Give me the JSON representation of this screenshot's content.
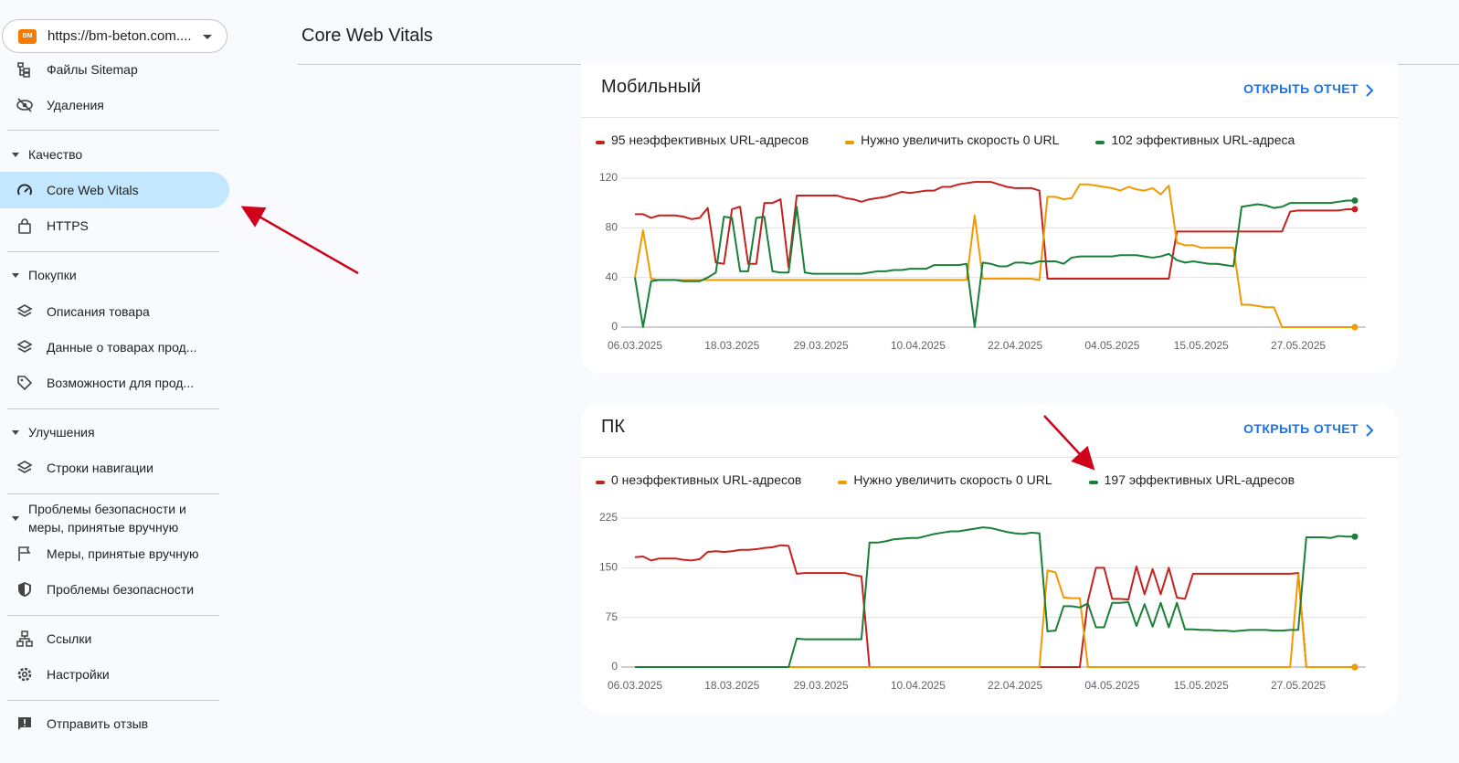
{
  "property": "https://bm-beton.com....",
  "property_icon": "BM",
  "header": {
    "title": "Core Web Vitals"
  },
  "nav": {
    "top_items": [
      "Файлы Sitemap",
      "Удаления"
    ],
    "sections": [
      {
        "title": "Качество",
        "items": [
          "Core Web Vitals",
          "HTTPS"
        ]
      },
      {
        "title": "Покупки",
        "items": [
          "Описания товара",
          "Данные о товарах прод...",
          "Возможности для прод..."
        ]
      },
      {
        "title": "Улучшения",
        "items": [
          "Строки навигации"
        ]
      },
      {
        "title": "Проблемы безопасности и меры, принятые вручную",
        "items": [
          "Меры, принятые вручную",
          "Проблемы безопасности"
        ]
      }
    ],
    "bottom_items": [
      "Ссылки",
      "Настройки"
    ],
    "feedback": "Отправить отзыв"
  },
  "report_link": "ОТКРЫТЬ ОТЧЕТ",
  "chart_data": [
    {
      "type": "line",
      "title": "Мобильный",
      "categories": [
        "06.03.2025",
        null,
        null,
        null,
        null,
        null,
        null,
        null,
        null,
        null,
        null,
        null,
        "18.03.2025",
        null,
        null,
        null,
        null,
        null,
        null,
        null,
        null,
        null,
        null,
        "29.03.2025",
        null,
        null,
        null,
        null,
        null,
        null,
        null,
        null,
        null,
        null,
        null,
        "10.04.2025",
        null,
        null,
        null,
        null,
        null,
        null,
        null,
        null,
        null,
        null,
        null,
        "22.04.2025",
        null,
        null,
        null,
        null,
        null,
        null,
        null,
        null,
        null,
        null,
        null,
        "04.05.2025",
        null,
        null,
        null,
        null,
        null,
        null,
        null,
        null,
        null,
        null,
        "15.05.2025",
        null,
        null,
        null,
        null,
        null,
        null,
        null,
        null,
        null,
        null,
        null,
        "27.05.2025",
        null,
        null,
        null,
        null,
        null,
        null,
        null
      ],
      "ylim": [
        0,
        120
      ],
      "yticks": [
        0,
        40,
        80,
        120
      ],
      "grid": true,
      "series": [
        {
          "name": "95 неэффективных URL-адресов",
          "color": "#c5221f",
          "values": [
            91,
            91,
            88,
            90,
            90,
            90,
            89,
            87,
            88,
            96,
            52,
            51,
            95,
            97,
            51,
            51,
            100,
            100,
            103,
            48,
            106,
            106,
            106,
            106,
            106,
            106,
            104,
            103,
            101,
            103,
            104,
            105,
            107,
            109,
            108,
            109,
            110,
            110,
            113,
            113,
            115,
            116,
            117,
            117,
            117,
            115,
            113,
            112,
            112,
            112,
            110,
            39,
            39,
            39,
            39,
            39,
            39,
            39,
            39,
            39,
            39,
            39,
            39,
            39,
            39,
            39,
            39,
            77,
            77,
            77,
            77,
            77,
            77,
            77,
            77,
            77,
            77,
            77,
            77,
            77,
            77,
            93,
            94,
            94,
            94,
            94,
            94,
            94,
            95,
            95
          ]
        },
        {
          "name": "Нужно увеличить скорость 0 URL",
          "color": "#f29900",
          "values": [
            40,
            78,
            39,
            38,
            38,
            38,
            38,
            38,
            38,
            38,
            38,
            38,
            38,
            38,
            38,
            38,
            38,
            38,
            38,
            38,
            38,
            38,
            38,
            38,
            38,
            38,
            38,
            38,
            38,
            38,
            38,
            38,
            38,
            38,
            38,
            38,
            38,
            38,
            38,
            38,
            38,
            38,
            90,
            39,
            39,
            39,
            39,
            39,
            39,
            39,
            38,
            105,
            105,
            103,
            104,
            115,
            115,
            114,
            113,
            112,
            110,
            113,
            111,
            110,
            112,
            107,
            114,
            68,
            66,
            66,
            64,
            64,
            64,
            64,
            64,
            18,
            18,
            17,
            16,
            16,
            0,
            0,
            0,
            0,
            0,
            0,
            0,
            0,
            0,
            0
          ]
        },
        {
          "name": "102 эффективных URL-адреса",
          "color": "#188038",
          "values": [
            40,
            0,
            37,
            38,
            38,
            38,
            37,
            37,
            37,
            40,
            44,
            89,
            88,
            45,
            45,
            88,
            89,
            45,
            44,
            44,
            97,
            44,
            43,
            43,
            43,
            43,
            43,
            43,
            43,
            44,
            45,
            45,
            46,
            46,
            47,
            47,
            47,
            50,
            50,
            50,
            50,
            51,
            0,
            52,
            51,
            49,
            49,
            52,
            52,
            51,
            53,
            53,
            53,
            51,
            56,
            57,
            57,
            57,
            57,
            57,
            58,
            58,
            58,
            57,
            56,
            57,
            59,
            54,
            52,
            53,
            52,
            51,
            51,
            50,
            49,
            97,
            98,
            99,
            98,
            96,
            97,
            100,
            100,
            100,
            100,
            100,
            100,
            101,
            102,
            102
          ]
        }
      ]
    },
    {
      "type": "line",
      "title": "ПК",
      "categories": [
        "06.03.2025",
        null,
        null,
        null,
        null,
        null,
        null,
        null,
        null,
        null,
        null,
        null,
        "18.03.2025",
        null,
        null,
        null,
        null,
        null,
        null,
        null,
        null,
        null,
        null,
        "29.03.2025",
        null,
        null,
        null,
        null,
        null,
        null,
        null,
        null,
        null,
        null,
        null,
        "10.04.2025",
        null,
        null,
        null,
        null,
        null,
        null,
        null,
        null,
        null,
        null,
        null,
        "22.04.2025",
        null,
        null,
        null,
        null,
        null,
        null,
        null,
        null,
        null,
        null,
        null,
        "04.05.2025",
        null,
        null,
        null,
        null,
        null,
        null,
        null,
        null,
        null,
        null,
        "15.05.2025",
        null,
        null,
        null,
        null,
        null,
        null,
        null,
        null,
        null,
        null,
        null,
        "27.05.2025",
        null,
        null,
        null,
        null,
        null,
        null,
        null
      ],
      "ylim": [
        0,
        225
      ],
      "yticks": [
        0,
        75,
        150,
        225
      ],
      "grid": true,
      "series": [
        {
          "name": "0 неэффективных URL-адресов",
          "color": "#c5221f",
          "values": [
            166,
            167,
            161,
            164,
            164,
            164,
            162,
            161,
            163,
            174,
            175,
            174,
            175,
            177,
            177,
            178,
            180,
            181,
            184,
            183,
            141,
            142,
            142,
            142,
            142,
            142,
            142,
            139,
            137,
            0,
            0,
            0,
            0,
            0,
            0,
            0,
            0,
            0,
            0,
            0,
            0,
            0,
            0,
            0,
            0,
            0,
            0,
            0,
            0,
            0,
            0,
            0,
            0,
            0,
            0,
            0,
            100,
            150,
            150,
            103,
            103,
            102,
            152,
            110,
            148,
            110,
            150,
            105,
            103,
            141,
            141,
            141,
            141,
            141,
            141,
            141,
            141,
            141,
            141,
            141,
            141,
            141,
            142,
            0,
            0,
            0,
            0,
            0,
            0,
            0
          ]
        },
        {
          "name": "Нужно увеличить скорость 0 URL",
          "color": "#f29900",
          "values": [
            0,
            0,
            0,
            0,
            0,
            0,
            0,
            0,
            0,
            0,
            0,
            0,
            0,
            0,
            0,
            0,
            0,
            0,
            0,
            0,
            0,
            0,
            0,
            0,
            0,
            0,
            0,
            0,
            0,
            0,
            0,
            0,
            0,
            0,
            0,
            0,
            0,
            0,
            0,
            0,
            0,
            0,
            0,
            0,
            0,
            0,
            0,
            0,
            0,
            0,
            0,
            146,
            143,
            105,
            104,
            104,
            0,
            0,
            0,
            0,
            0,
            0,
            0,
            0,
            0,
            0,
            0,
            0,
            0,
            0,
            0,
            0,
            0,
            0,
            0,
            0,
            0,
            0,
            0,
            0,
            0,
            0,
            140,
            0,
            0,
            0,
            0,
            0,
            0,
            0
          ]
        },
        {
          "name": "197 эффективных URL-адресов",
          "color": "#188038",
          "values": [
            0,
            0,
            0,
            0,
            0,
            0,
            0,
            0,
            0,
            0,
            0,
            0,
            0,
            0,
            0,
            0,
            0,
            0,
            0,
            0,
            43,
            42,
            42,
            42,
            42,
            42,
            42,
            42,
            42,
            188,
            188,
            190,
            193,
            194,
            195,
            195,
            198,
            201,
            203,
            205,
            205,
            207,
            209,
            211,
            210,
            207,
            204,
            202,
            201,
            203,
            202,
            54,
            55,
            92,
            92,
            90,
            96,
            60,
            60,
            97,
            97,
            98,
            62,
            95,
            61,
            97,
            60,
            97,
            57,
            57,
            56,
            56,
            55,
            55,
            54,
            55,
            56,
            56,
            56,
            55,
            55,
            56,
            56,
            196,
            196,
            196,
            195,
            198,
            197,
            197
          ]
        }
      ]
    }
  ]
}
